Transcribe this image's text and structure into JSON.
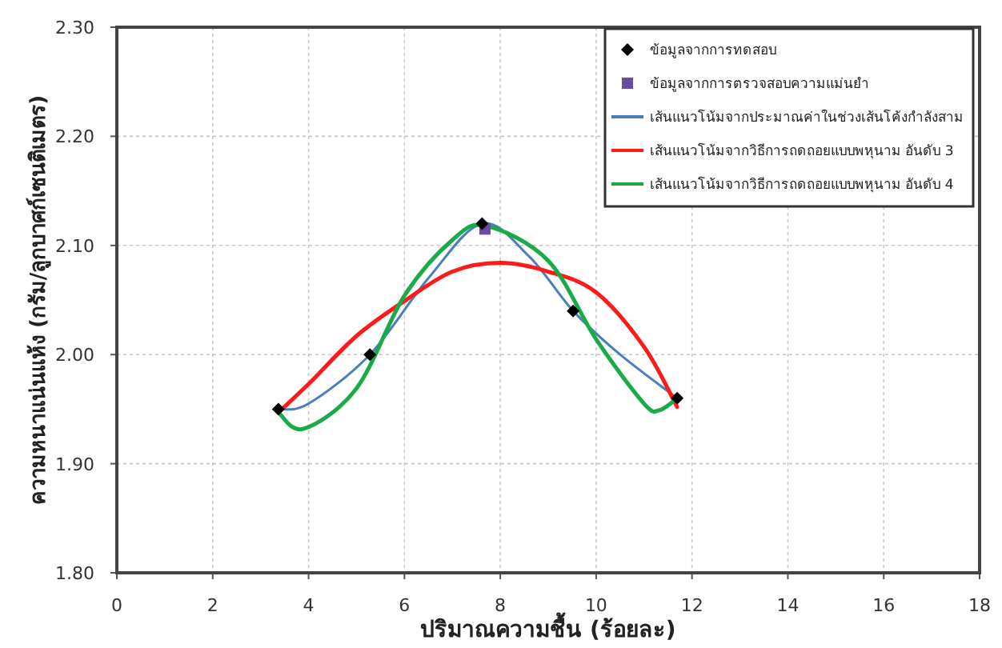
{
  "chart_data": {
    "type": "scatter",
    "xlabel": "ปริมาณความชื้น (ร้อยละ)",
    "ylabel": "ความหนาแน่นแห้ง (กรัม/ลูกบาศก์เซนติเมตร)",
    "xlim": [
      0,
      18
    ],
    "ylim": [
      1.8,
      2.3
    ],
    "xticks": [
      0,
      2,
      4,
      6,
      8,
      10,
      12,
      14,
      16,
      18
    ],
    "yticks": [
      {
        "value": 1.8,
        "label": "1.80"
      },
      {
        "value": 1.9,
        "label": "1.90"
      },
      {
        "value": 2.0,
        "label": "2.00"
      },
      {
        "value": 2.1,
        "label": "2.10"
      },
      {
        "value": 2.2,
        "label": "2.20"
      },
      {
        "value": 2.3,
        "label": "2.30"
      }
    ],
    "grid": true,
    "legend": "top right",
    "series": [
      {
        "name": "ข้อมูลจากการทดสอบ",
        "type": "scatter",
        "marker": "diamond",
        "color": "#000000",
        "x": [
          3.37,
          5.28,
          7.62,
          9.52,
          11.69
        ],
        "values": [
          1.95,
          2.0,
          2.12,
          2.04,
          1.96
        ]
      },
      {
        "name": "ข้อมูลจากการตรวจสอบความแม่นยำ",
        "type": "scatter",
        "marker": "square",
        "color": "#6a4c9c",
        "x": [
          7.68
        ],
        "values": [
          2.115
        ]
      },
      {
        "name": "เส้นแนวโน้มจากประมาณค่าในช่วงเส้นโค้งกำลังสาม",
        "type": "line",
        "color": "#4a7ebf",
        "x": [
          3.37,
          4.0,
          5.28,
          6.5,
          7.62,
          8.6,
          9.52,
          10.5,
          11.69
        ],
        "values": [
          1.95,
          1.955,
          2.0,
          2.07,
          2.12,
          2.09,
          2.04,
          2.0,
          1.96
        ]
      },
      {
        "name": "เส้นแนวโน้มจากวิธีการถดถอยแบบพหุนาม อันดับ 3",
        "type": "line",
        "color": "#ff1a1a",
        "x": [
          3.37,
          4.0,
          5.0,
          6.0,
          7.0,
          8.0,
          9.0,
          10.0,
          11.0,
          11.69
        ],
        "values": [
          1.947,
          1.973,
          2.017,
          2.049,
          2.076,
          2.084,
          2.076,
          2.057,
          2.007,
          1.952
        ]
      },
      {
        "name": "เส้นแนวโน้มจากวิธีการถดถอยแบบพหุนาม อันดับ 4",
        "type": "line",
        "color": "#1aaa4a",
        "x": [
          3.37,
          3.9,
          5.0,
          6.0,
          7.0,
          7.7,
          9.0,
          10.0,
          11.0,
          11.32,
          11.69
        ],
        "values": [
          1.947,
          1.932,
          1.969,
          2.054,
          2.105,
          2.118,
          2.086,
          2.014,
          1.955,
          1.949,
          1.96
        ]
      }
    ]
  }
}
